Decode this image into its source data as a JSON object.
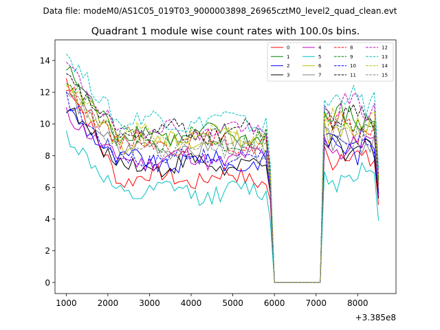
{
  "suptitle": "Data file: modeM0/AS1C05_019T03_9000003898_26965cztM0_level2_quad_clean.evt",
  "chart_data": {
    "type": "line",
    "title": "Quadrant 1 module wise count rates with 100.0s bins.",
    "xlabel": "",
    "ylabel": "",
    "x_offset_label": "+3.385e8",
    "xlim": [
      730,
      8920
    ],
    "ylim": [
      -0.7,
      15.3
    ],
    "x_ticks": [
      1000,
      2000,
      3000,
      4000,
      5000,
      6000,
      7000,
      8000
    ],
    "x_tick_labels": [
      "1000",
      "2000",
      "3000",
      "4000",
      "5000",
      "6000",
      "7000",
      "8000"
    ],
    "y_ticks": [
      0,
      2,
      4,
      6,
      8,
      10,
      12,
      14
    ],
    "y_tick_labels": [
      "0",
      "2",
      "4",
      "6",
      "8",
      "10",
      "12",
      "14"
    ],
    "legend_position": "top-right",
    "gap_start": 6000,
    "gap_end": 7100,
    "segment1_start": 1000,
    "segment1_end": 5900,
    "segment2_start": 7200,
    "segment2_end": 8500,
    "step": 100,
    "series": [
      {
        "name": "0",
        "color": "#ff0000",
        "dash": "solid",
        "start": 12.8,
        "level": 6.6,
        "end": 5.2,
        "seg2_start": 8.6,
        "seg2_level": 8.0
      },
      {
        "name": "1",
        "color": "#008000",
        "dash": "solid",
        "start": 13.5,
        "level": 9.3,
        "end": 6.8,
        "seg2_start": 10.8,
        "seg2_level": 10.3
      },
      {
        "name": "2",
        "color": "#0000ff",
        "dash": "solid",
        "start": 11.0,
        "level": 7.6,
        "end": 5.9,
        "seg2_start": 9.0,
        "seg2_level": 8.5
      },
      {
        "name": "3",
        "color": "#000000",
        "dash": "solid",
        "start": 11.2,
        "level": 7.4,
        "end": 5.6,
        "seg2_start": 8.8,
        "seg2_level": 8.3
      },
      {
        "name": "4",
        "color": "#c000c0",
        "dash": "solid",
        "start": 10.6,
        "level": 7.8,
        "end": 5.7,
        "seg2_start": 9.2,
        "seg2_level": 8.6
      },
      {
        "name": "5",
        "color": "#00bfbf",
        "dash": "solid",
        "start": 9.3,
        "level": 5.7,
        "end": 3.9,
        "seg2_start": 7.0,
        "seg2_level": 6.8
      },
      {
        "name": "6",
        "color": "#bfbf00",
        "dash": "solid",
        "start": 12.3,
        "level": 8.9,
        "end": 6.4,
        "seg2_start": 10.2,
        "seg2_level": 9.8
      },
      {
        "name": "7",
        "color": "#808080",
        "dash": "solid",
        "start": 12.0,
        "level": 8.4,
        "end": 6.1,
        "seg2_start": 9.8,
        "seg2_level": 9.2
      },
      {
        "name": "8",
        "color": "#ff0000",
        "dash": "dashed",
        "start": 12.4,
        "level": 8.8,
        "end": 6.5,
        "seg2_start": 10.2,
        "seg2_level": 9.7
      },
      {
        "name": "9",
        "color": "#008000",
        "dash": "dashed",
        "start": 13.0,
        "level": 9.0,
        "end": 6.7,
        "seg2_start": 10.4,
        "seg2_level": 9.9
      },
      {
        "name": "10",
        "color": "#0000ff",
        "dash": "dashed",
        "start": 11.6,
        "level": 7.9,
        "end": 6.0,
        "seg2_start": 9.3,
        "seg2_level": 8.7
      },
      {
        "name": "11",
        "color": "#000000",
        "dash": "dashed",
        "start": 12.9,
        "level": 9.5,
        "end": 7.0,
        "seg2_start": 11.0,
        "seg2_level": 10.6
      },
      {
        "name": "12",
        "color": "#c000c0",
        "dash": "dashed",
        "start": 13.8,
        "level": 9.6,
        "end": 7.1,
        "seg2_start": 11.2,
        "seg2_level": 11.0
      },
      {
        "name": "13",
        "color": "#00bfbf",
        "dash": "dashed",
        "start": 14.5,
        "level": 10.2,
        "end": 7.5,
        "seg2_start": 11.5,
        "seg2_level": 11.6
      },
      {
        "name": "14",
        "color": "#bfbf00",
        "dash": "dashed",
        "start": 12.7,
        "level": 9.2,
        "end": 6.9,
        "seg2_start": 10.7,
        "seg2_level": 10.2
      },
      {
        "name": "15",
        "color": "#808080",
        "dash": "dashed",
        "start": 12.5,
        "level": 8.6,
        "end": 6.3,
        "seg2_start": 10.0,
        "seg2_level": 9.5
      }
    ]
  }
}
